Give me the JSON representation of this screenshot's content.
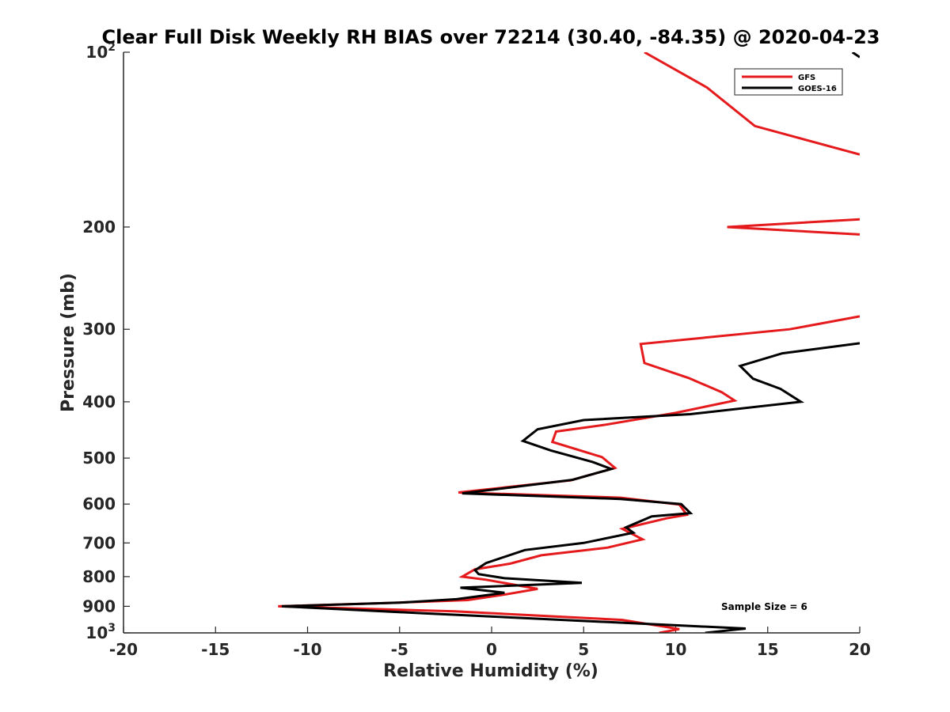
{
  "chart_data": {
    "type": "line",
    "title": "Clear Full Disk Weekly RH BIAS over 72214 (30.40, -84.35) @ 2020-04-23",
    "xlabel": "Relative Humidity (%)",
    "ylabel": "Pressure (mb)",
    "xlim": [
      -20,
      20
    ],
    "ylim": [
      1000,
      100
    ],
    "yscale": "log",
    "y_reversed": true,
    "x_ticks": [
      -20,
      -15,
      -10,
      -5,
      0,
      5,
      10,
      15,
      20
    ],
    "x_tick_labels": [
      "-20",
      "-15",
      "-10",
      "-5",
      "0",
      "5",
      "10",
      "15",
      "20"
    ],
    "y_ticks": [
      100,
      200,
      300,
      400,
      500,
      600,
      700,
      800,
      900,
      1000
    ],
    "y_tick_labels": [
      {
        "base": "10",
        "exp": "2"
      },
      {
        "base": "200",
        "exp": ""
      },
      {
        "base": "300",
        "exp": ""
      },
      {
        "base": "400",
        "exp": ""
      },
      {
        "base": "500",
        "exp": ""
      },
      {
        "base": "600",
        "exp": ""
      },
      {
        "base": "700",
        "exp": ""
      },
      {
        "base": "800",
        "exp": ""
      },
      {
        "base": "900",
        "exp": ""
      },
      {
        "base": "10",
        "exp": "3"
      }
    ],
    "legend_position": "top-right",
    "annotation": "Sample Size = 6",
    "grid": false,
    "series": [
      {
        "name": "GFS",
        "color": "#e41a1c",
        "points": [
          [
            8.3,
            100
          ],
          [
            11.7,
            115
          ],
          [
            14.3,
            134
          ],
          [
            20.0,
            150
          ],
          [
            null,
            null
          ],
          [
            20.0,
            194
          ],
          [
            12.8,
            200
          ],
          [
            20.0,
            206
          ],
          [
            null,
            null
          ],
          [
            20.0,
            285
          ],
          [
            16.2,
            300
          ],
          [
            8.1,
            318
          ],
          [
            8.3,
            343
          ],
          [
            10.7,
            364
          ],
          [
            12.5,
            385
          ],
          [
            13.2,
            398
          ],
          [
            10.0,
            418
          ],
          [
            6.2,
            438
          ],
          [
            3.5,
            450
          ],
          [
            3.3,
            469
          ],
          [
            6.0,
            498
          ],
          [
            6.7,
            520
          ],
          [
            4.3,
            546
          ],
          [
            -1.8,
            573
          ],
          [
            7.0,
            585
          ],
          [
            10.2,
            601
          ],
          [
            10.6,
            626
          ],
          [
            9.5,
            635
          ],
          [
            7.1,
            662
          ],
          [
            8.2,
            690
          ],
          [
            6.3,
            713
          ],
          [
            2.7,
            735
          ],
          [
            1.0,
            760
          ],
          [
            -0.9,
            777
          ],
          [
            -1.6,
            800
          ],
          [
            -0.3,
            810
          ],
          [
            2.5,
            840
          ],
          [
            0.8,
            858
          ],
          [
            -1.3,
            878
          ],
          [
            -5.5,
            888
          ],
          [
            -11.6,
            900
          ],
          [
            -2.0,
            918
          ],
          [
            7.1,
            950
          ],
          [
            10.2,
            985
          ],
          [
            9.1,
            1000
          ]
        ]
      },
      {
        "name": "GOES-16",
        "color": "#000000",
        "points": [
          [
            19.6,
            100
          ],
          [
            20.0,
            102
          ],
          [
            null,
            null
          ],
          [
            20.0,
            317
          ],
          [
            15.8,
            330
          ],
          [
            13.5,
            347
          ],
          [
            14.2,
            365
          ],
          [
            15.7,
            380
          ],
          [
            16.8,
            400
          ],
          [
            10.8,
            420
          ],
          [
            5.0,
            430
          ],
          [
            2.5,
            446
          ],
          [
            1.7,
            467
          ],
          [
            3.2,
            485
          ],
          [
            5.5,
            508
          ],
          [
            6.5,
            522
          ],
          [
            4.4,
            545
          ],
          [
            -1.6,
            575
          ],
          [
            7.0,
            588
          ],
          [
            10.3,
            600
          ],
          [
            10.8,
            622
          ],
          [
            8.7,
            630
          ],
          [
            7.3,
            658
          ],
          [
            7.7,
            672
          ],
          [
            5.0,
            700
          ],
          [
            1.8,
            720
          ],
          [
            -0.3,
            758
          ],
          [
            -0.9,
            780
          ],
          [
            -0.7,
            792
          ],
          [
            0.7,
            805
          ],
          [
            4.9,
            820
          ],
          [
            -1.7,
            836
          ],
          [
            0.7,
            853
          ],
          [
            -1.9,
            875
          ],
          [
            -5.0,
            887
          ],
          [
            -11.4,
            900
          ],
          [
            -3.8,
            925
          ],
          [
            9.9,
            970
          ],
          [
            13.8,
            983
          ],
          [
            11.6,
            1000
          ]
        ]
      }
    ]
  }
}
